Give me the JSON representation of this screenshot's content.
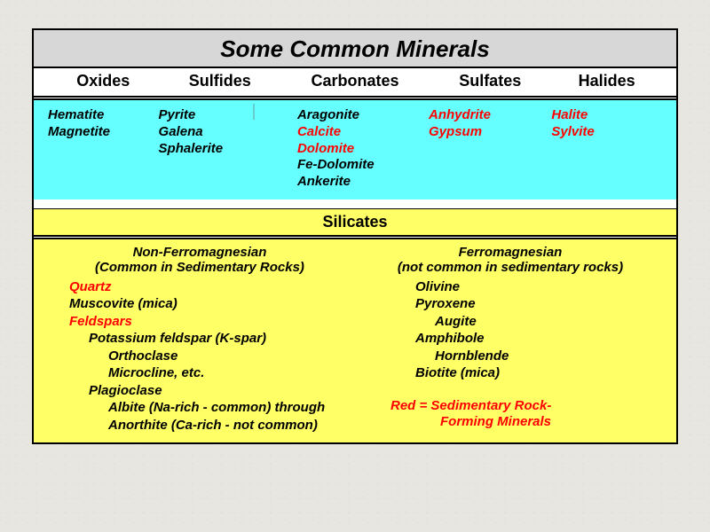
{
  "title": "Some Common Minerals",
  "colors": {
    "page_bg": "#e8e6e0",
    "title_bg": "#d7d7d7",
    "cyan_panel": "#66ffff",
    "yellow_panel": "#ffff66",
    "red_text": "#ff0000",
    "black_text": "#000000",
    "border": "#000000"
  },
  "fonts": {
    "title_size_pt": 26,
    "header_size_pt": 18,
    "body_size_pt": 15,
    "family": "Arial"
  },
  "topHeaders": {
    "h0": "Oxides",
    "h1": "Sulfides",
    "h2": "Carbonates",
    "h3": "Sulfates",
    "h4": "Halides"
  },
  "columnWidthsPct": [
    18,
    20,
    24,
    20,
    18
  ],
  "cyan": {
    "oxides": [
      {
        "t": "Hematite",
        "red": false
      },
      {
        "t": "Magnetite",
        "red": false
      }
    ],
    "sulfides": [
      {
        "t": "Pyrite",
        "red": false
      },
      {
        "t": "Galena",
        "red": false
      },
      {
        "t": "Sphalerite",
        "red": false
      }
    ],
    "carbonates": [
      {
        "t": "Aragonite",
        "red": false
      },
      {
        "t": "Calcite",
        "red": true
      },
      {
        "t": "Dolomite",
        "red": true
      },
      {
        "t": "Fe-Dolomite",
        "red": false
      },
      {
        "t": "Ankerite",
        "red": false
      }
    ],
    "sulfates": [
      {
        "t": "Anhydrite",
        "red": true
      },
      {
        "t": "Gypsum",
        "red": true
      }
    ],
    "halides": [
      {
        "t": "Halite",
        "red": true
      },
      {
        "t": "Sylvite",
        "red": true
      }
    ]
  },
  "silicatesHeader": "Silicates",
  "silicates": {
    "left": {
      "sub1": "Non-Ferromagnesian",
      "sub2": "(Common in Sedimentary Rocks)",
      "items": [
        {
          "t": "Quartz",
          "red": true,
          "ind": 1
        },
        {
          "t": "Muscovite (mica)",
          "red": false,
          "ind": 1
        },
        {
          "t": "Feldspars",
          "red": true,
          "ind": 1
        },
        {
          "t": "Potassium feldspar (K-spar)",
          "red": false,
          "ind": 2
        },
        {
          "t": "Orthoclase",
          "red": false,
          "ind": 3
        },
        {
          "t": "Microcline, etc.",
          "red": false,
          "ind": 3
        },
        {
          "t": "Plagioclase",
          "red": false,
          "ind": 2
        },
        {
          "t": "Albite (Na-rich - common) through",
          "red": false,
          "ind": 3
        },
        {
          "t": "Anorthite (Ca-rich - not common)",
          "red": false,
          "ind": 3
        }
      ]
    },
    "right": {
      "sub1": "Ferromagnesian",
      "sub2": "(not common in sedimentary rocks)",
      "items": [
        {
          "t": "Olivine",
          "red": false,
          "ind": 1
        },
        {
          "t": "Pyroxene",
          "red": false,
          "ind": 1
        },
        {
          "t": "Augite",
          "red": false,
          "ind": 2
        },
        {
          "t": "Amphibole",
          "red": false,
          "ind": 1
        },
        {
          "t": "Hornblende",
          "red": false,
          "ind": 2
        },
        {
          "t": "Biotite (mica)",
          "red": false,
          "ind": 1
        }
      ],
      "legend1": "Red = Sedimentary Rock-",
      "legend2": "Forming Minerals"
    }
  }
}
